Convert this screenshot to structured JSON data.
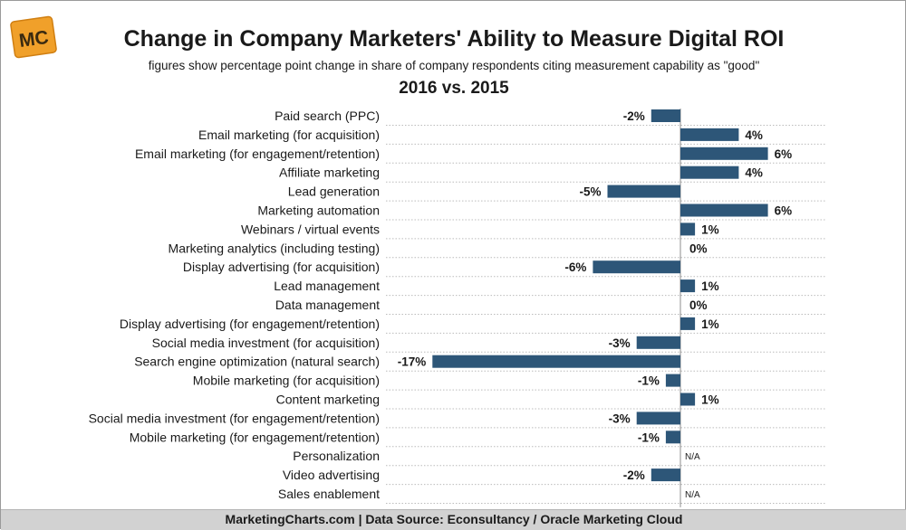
{
  "header": {
    "logo_text": "MC",
    "title": "Change in Company Marketers' Ability to Measure Digital ROI",
    "subtitle": "figures show percentage point change in share of company respondents citing measurement capability as \"good\"",
    "period": "2016 vs. 2015"
  },
  "footer": {
    "source": "MarketingCharts.com | Data Source: Econsultancy / Oracle Marketing Cloud"
  },
  "colors": {
    "bar": "#2d5678",
    "grid": "#bcbcbc",
    "footer_bg": "#d2d2d2",
    "logo_bg": "#f0a02a"
  },
  "chart_data": {
    "type": "bar",
    "orientation": "horizontal",
    "unit": "percentage points",
    "xlim": [
      -17,
      6
    ],
    "grid": "dotted horizontal",
    "categories": [
      "Paid search (PPC)",
      "Email marketing (for acquisition)",
      "Email marketing (for engagement/retention)",
      "Affiliate marketing",
      "Lead generation",
      "Marketing automation",
      "Webinars / virtual events",
      "Marketing analytics (including testing)",
      "Display advertising (for acquisition)",
      "Lead management",
      "Data management",
      "Display advertising (for engagement/retention)",
      "Social media investment (for acquisition)",
      "Search engine optimization (natural search)",
      "Mobile marketing (for acquisition)",
      "Content marketing",
      "Social media investment (for engagement/retention)",
      "Mobile marketing (for engagement/retention)",
      "Personalization",
      "Video advertising",
      "Sales enablement"
    ],
    "values": [
      -2,
      4,
      6,
      4,
      -5,
      6,
      1,
      0,
      -6,
      1,
      0,
      1,
      -3,
      -17,
      -1,
      1,
      -3,
      -1,
      null,
      -2,
      null
    ],
    "labels": [
      "-2%",
      "4%",
      "6%",
      "4%",
      "-5%",
      "6%",
      "1%",
      "0%",
      "-6%",
      "1%",
      "0%",
      "1%",
      "-3%",
      "-17%",
      "-1%",
      "1%",
      "-3%",
      "-1%",
      "N/A",
      "-2%",
      "N/A"
    ]
  }
}
